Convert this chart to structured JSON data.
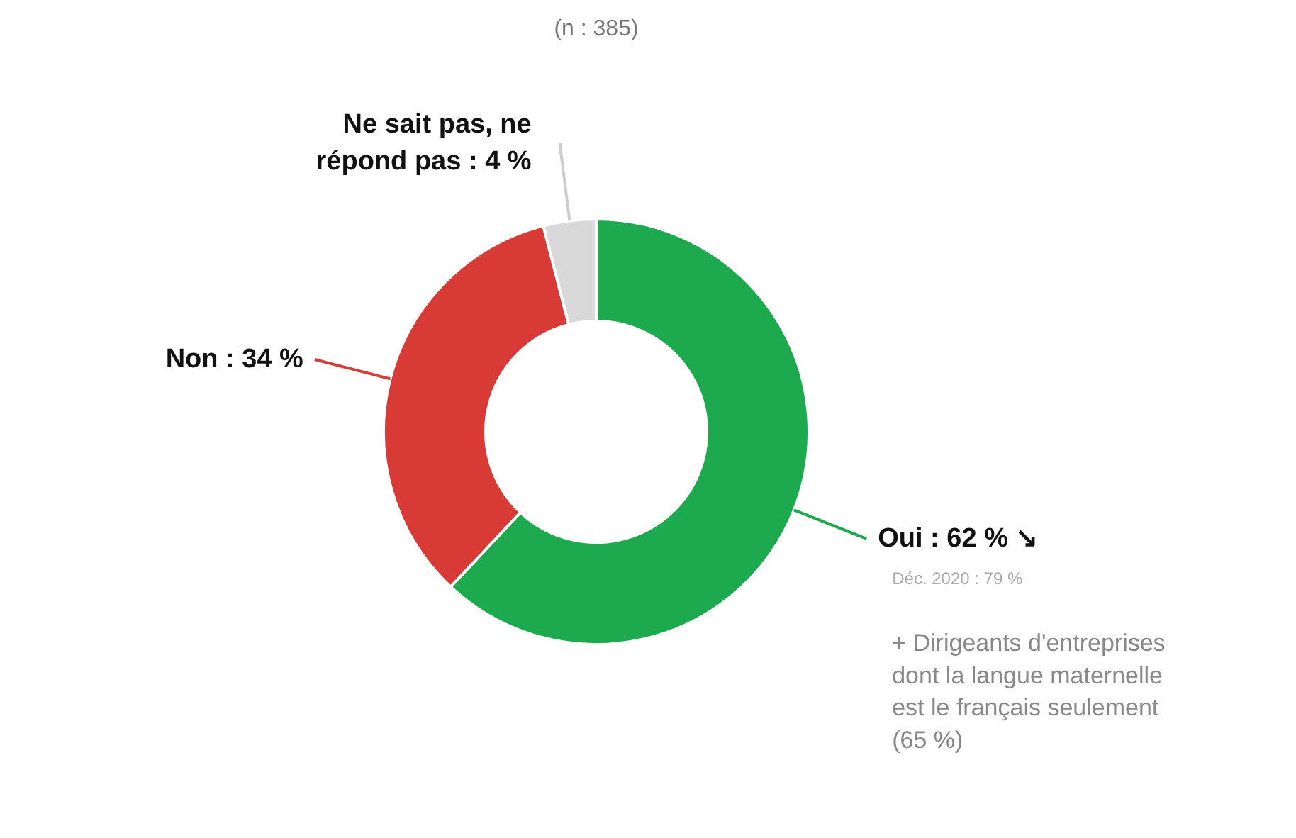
{
  "chart_data": {
    "type": "donut",
    "subtitle": "(n : 385)",
    "categories": [
      "Oui",
      "Non",
      "Ne sait pas, ne répond pas"
    ],
    "values": [
      62,
      34,
      4
    ],
    "value_labels": [
      "62 % ↘",
      "34 %",
      "4 %"
    ],
    "colors": [
      "#1daa4f",
      "#d83a36",
      "#d9d9d9"
    ],
    "annotations": [
      "Déc. 2020 : 79 %",
      "+ Dirigeants d'entreprises dont la langue maternelle est le français seulement (65 %)"
    ]
  }
}
